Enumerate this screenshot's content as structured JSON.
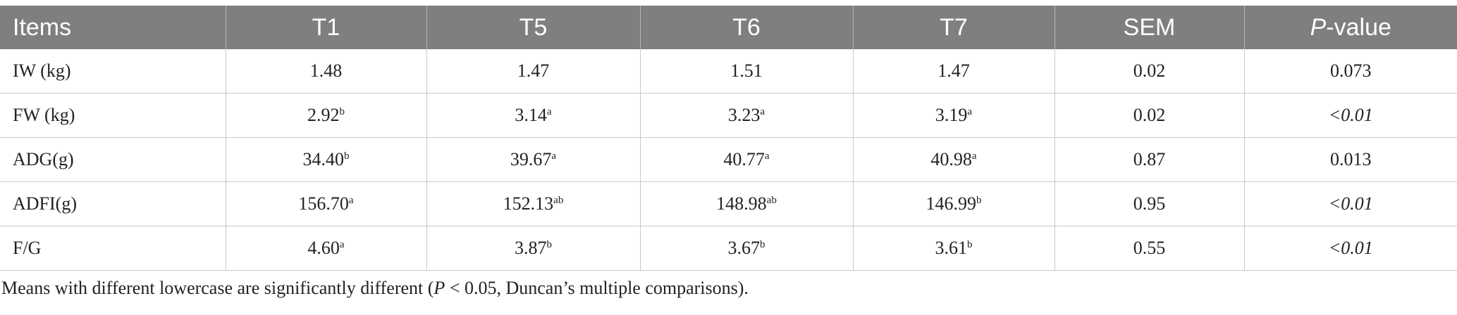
{
  "table": {
    "header": [
      "Items",
      "T1",
      "T5",
      "T6",
      "T7",
      "SEM",
      {
        "italic": "P",
        "text": "-value"
      }
    ],
    "rows": [
      [
        "IW (kg)",
        "1.48",
        "1.47",
        "1.51",
        "1.47",
        "0.02",
        "0.073"
      ],
      [
        "FW (kg)",
        {
          "text": "2.92",
          "sup": "b"
        },
        {
          "text": "3.14",
          "sup": "a"
        },
        {
          "text": "3.23",
          "sup": "a"
        },
        {
          "text": "3.19",
          "sup": "a"
        },
        "0.02",
        {
          "text": "<0.01",
          "italic": true
        }
      ],
      [
        "ADG(g)",
        {
          "text": "34.40",
          "sup": "b"
        },
        {
          "text": "39.67",
          "sup": "a"
        },
        {
          "text": "40.77",
          "sup": "a"
        },
        {
          "text": "40.98",
          "sup": "a"
        },
        "0.87",
        "0.013"
      ],
      [
        "ADFI(g)",
        {
          "text": "156.70",
          "sup": "a"
        },
        {
          "text": "152.13",
          "sup": "ab"
        },
        {
          "text": "148.98",
          "sup": "ab"
        },
        {
          "text": "146.99",
          "sup": "b"
        },
        "0.95",
        {
          "text": "<0.01",
          "italic": true
        }
      ],
      [
        "F/G",
        {
          "text": "4.60",
          "sup": "a"
        },
        {
          "text": "3.87",
          "sup": "b"
        },
        {
          "text": "3.67",
          "sup": "b"
        },
        {
          "text": "3.61",
          "sup": "b"
        },
        "0.55",
        {
          "text": "<0.01",
          "italic": true
        }
      ]
    ]
  },
  "footnote": {
    "before": "Means with different lowercase are significantly different (",
    "italic": "P",
    "after": " < 0.05, Duncan’s multiple comparisons)."
  }
}
